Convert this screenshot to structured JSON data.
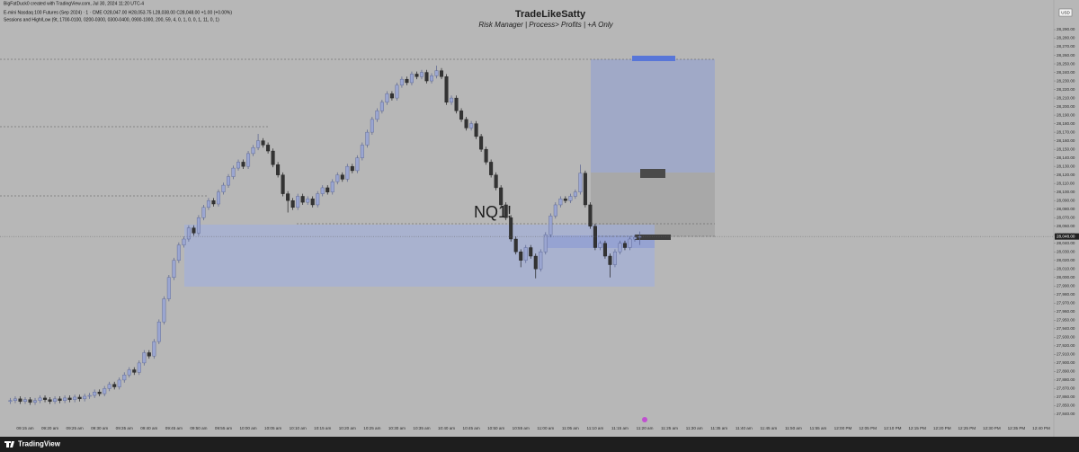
{
  "chart_data": {
    "type": "candlestick",
    "credit": "BigFatDuck0 created with TradingView.com, Jul 30, 2024 11:20 UTC-4",
    "symbol_line": "E-mini Nasdaq 100 Futures (Sep 2024) · 1 · CME  O28,047.00  H28,053.75  L28,038.00  C28,048.00  +1.00 (+0.00%)",
    "indicator_line": "Sessions and High/Low (9t, 1700-0100, 0200-0300, 0300-0400, 0900-1000, 200, 59, 4, 0, 1, 0, 0, 1, 11, 0, 1)",
    "title": "TradeLikeSatty",
    "subtitle": "Risk Manager | Process> Profits | +A Only",
    "currency": "USD",
    "branding": "TradingView",
    "last_price_label": "28,048.00",
    "up_color": "#9ba6d1",
    "down_color": "#333333",
    "grid": false,
    "x": [
      "09:12 am",
      "09:13 am",
      "09:14 am",
      "09:15 am",
      "09:16 am",
      "09:17 am",
      "09:18 am",
      "09:19 am",
      "09:20 am",
      "09:21 am",
      "09:22 am",
      "09:23 am",
      "09:24 am",
      "09:25 am",
      "09:26 am",
      "09:27 am",
      "09:28 am",
      "09:29 am",
      "09:30 am",
      "09:31 am",
      "09:32 am",
      "09:33 am",
      "09:34 am",
      "09:35 am",
      "09:36 am",
      "09:37 am",
      "09:38 am",
      "09:39 am",
      "09:40 am",
      "09:41 am",
      "09:42 am",
      "09:43 am",
      "09:44 am",
      "09:45 am",
      "09:46 am",
      "09:47 am",
      "09:48 am",
      "09:49 am",
      "09:50 am",
      "09:51 am",
      "09:52 am",
      "09:53 am",
      "09:54 am",
      "09:55 am",
      "09:56 am",
      "09:57 am",
      "09:58 am",
      "09:59 am",
      "10:00 am",
      "10:01 am",
      "10:02 am",
      "10:03 am",
      "10:04 am",
      "10:05 am",
      "10:06 am",
      "10:07 am",
      "10:08 am",
      "10:09 am",
      "10:10 am",
      "10:11 am",
      "10:12 am",
      "10:13 am",
      "10:14 am",
      "10:15 am",
      "10:16 am",
      "10:17 am",
      "10:18 am",
      "10:19 am",
      "10:20 am",
      "10:21 am",
      "10:22 am",
      "10:23 am",
      "10:24 am",
      "10:25 am",
      "10:26 am",
      "10:27 am",
      "10:28 am",
      "10:29 am",
      "10:30 am",
      "10:31 am",
      "10:32 am",
      "10:33 am",
      "10:34 am",
      "10:35 am",
      "10:36 am",
      "10:37 am",
      "10:38 am",
      "10:39 am",
      "10:40 am",
      "10:41 am",
      "10:42 am",
      "10:43 am",
      "10:44 am",
      "10:45 am",
      "10:46 am",
      "10:47 am",
      "10:48 am",
      "10:49 am",
      "10:50 am",
      "10:51 am",
      "10:52 am",
      "10:53 am",
      "10:54 am",
      "10:55 am",
      "10:56 am",
      "10:57 am",
      "10:58 am",
      "10:59 am",
      "11:00 am",
      "11:01 am",
      "11:02 am",
      "11:03 am",
      "11:04 am",
      "11:05 am",
      "11:06 am",
      "11:07 am",
      "11:08 am",
      "11:09 am",
      "11:10 am",
      "11:11 am",
      "11:12 am",
      "11:13 am",
      "11:14 am",
      "11:15 am",
      "11:16 am",
      "11:17 am",
      "11:18 am",
      "11:19 am"
    ],
    "open": [
      27855,
      27856,
      27858,
      27855,
      27857,
      27854,
      27856,
      27859,
      27857,
      27855,
      27858,
      27856,
      27859,
      27857,
      27860,
      27858,
      27861,
      27862,
      27866,
      27864,
      27870,
      27875,
      27872,
      27880,
      27886,
      27892,
      27889,
      27900,
      27912,
      27908,
      27925,
      27948,
      27975,
      28000,
      28020,
      28038,
      28045,
      28058,
      28052,
      28070,
      28082,
      28090,
      28086,
      28100,
      28108,
      28118,
      28128,
      28135,
      28130,
      28145,
      28152,
      28160,
      28155,
      28148,
      28132,
      28120,
      28098,
      28090,
      28082,
      28095,
      28088,
      28092,
      28085,
      28098,
      28105,
      28100,
      28112,
      28120,
      28115,
      28130,
      28125,
      28140,
      28155,
      28170,
      28185,
      28195,
      28205,
      28215,
      28210,
      28225,
      28232,
      28228,
      28238,
      28235,
      28240,
      28230,
      28236,
      28242,
      28235,
      28205,
      28210,
      28195,
      28185,
      28175,
      28180,
      28165,
      28150,
      28135,
      28120,
      28105,
      28085,
      28070,
      28045,
      28030,
      28020,
      28035,
      28025,
      28010,
      28030,
      28050,
      28072,
      28085,
      28092,
      28090,
      28095,
      28100,
      28122,
      28085,
      28060,
      28035,
      28040,
      28025,
      28015,
      28030,
      28040,
      28035,
      28045,
      28047
    ],
    "high": [
      27859,
      27861,
      27861,
      27860,
      27860,
      27859,
      27862,
      27862,
      27860,
      27861,
      27861,
      27862,
      27862,
      27863,
      27863,
      27864,
      27865,
      27869,
      27869,
      27873,
      27878,
      27878,
      27883,
      27889,
      27895,
      27895,
      27903,
      27915,
      27915,
      27928,
      27951,
      27978,
      28003,
      28023,
      28041,
      28048,
      28061,
      28061,
      28073,
      28085,
      28093,
      28093,
      28103,
      28111,
      28121,
      28131,
      28138,
      28138,
      28148,
      28155,
      28168,
      28163,
      28158,
      28151,
      28135,
      28123,
      28101,
      28093,
      28098,
      28098,
      28095,
      28095,
      28101,
      28108,
      28108,
      28115,
      28123,
      28123,
      28133,
      28133,
      28143,
      28158,
      28173,
      28188,
      28198,
      28208,
      28218,
      28218,
      28228,
      28235,
      28235,
      28241,
      28241,
      28243,
      28243,
      28239,
      28248,
      28245,
      28238,
      28213,
      28213,
      28198,
      28188,
      28183,
      28183,
      28168,
      28153,
      28138,
      28123,
      28108,
      28088,
      28073,
      28048,
      28033,
      28038,
      28038,
      28028,
      28033,
      28053,
      28075,
      28088,
      28095,
      28095,
      28098,
      28103,
      28132,
      28125,
      28088,
      28063,
      28043,
      28043,
      28028,
      28033,
      28043,
      28043,
      28048,
      28050,
      28053.75
    ],
    "low": [
      27852,
      27853,
      27852,
      27852,
      27851,
      27851,
      27853,
      27854,
      27852,
      27852,
      27853,
      27853,
      27854,
      27854,
      27855,
      27855,
      27858,
      27859,
      27861,
      27861,
      27867,
      27869,
      27869,
      27877,
      27883,
      27886,
      27886,
      27897,
      27905,
      27905,
      27922,
      27945,
      27972,
      27997,
      28017,
      28035,
      28042,
      28049,
      28049,
      28067,
      28079,
      28083,
      28083,
      28097,
      28105,
      28115,
      28125,
      28127,
      28127,
      28142,
      28149,
      28152,
      28145,
      28129,
      28117,
      28095,
      28076,
      28079,
      28079,
      28085,
      28085,
      28082,
      28082,
      28095,
      28097,
      28097,
      28109,
      28112,
      28112,
      28122,
      28122,
      28137,
      28152,
      28167,
      28182,
      28192,
      28202,
      28207,
      28207,
      28222,
      28225,
      28225,
      28232,
      28232,
      28227,
      28227,
      28233,
      28232,
      28202,
      28202,
      28192,
      28182,
      28172,
      28172,
      28162,
      28147,
      28132,
      28117,
      28102,
      28082,
      28067,
      28042,
      28027,
      28012,
      28017,
      28022,
      27999,
      28007,
      28027,
      28047,
      28069,
      28082,
      28087,
      28087,
      28092,
      28097,
      28082,
      28057,
      28032,
      28032,
      28022,
      28000,
      28012,
      28027,
      28032,
      28032,
      28042,
      28038
    ],
    "close": [
      27856,
      27858,
      27855,
      27857,
      27854,
      27856,
      27859,
      27857,
      27855,
      27858,
      27856,
      27859,
      27857,
      27860,
      27858,
      27861,
      27862,
      27866,
      27864,
      27870,
      27875,
      27872,
      27880,
      27886,
      27892,
      27889,
      27900,
      27912,
      27908,
      27925,
      27948,
      27975,
      28000,
      28020,
      28038,
      28045,
      28058,
      28052,
      28070,
      28082,
      28090,
      28086,
      28100,
      28108,
      28118,
      28128,
      28135,
      28130,
      28145,
      28152,
      28160,
      28155,
      28148,
      28132,
      28120,
      28098,
      28090,
      28082,
      28095,
      28088,
      28092,
      28085,
      28098,
      28105,
      28100,
      28112,
      28120,
      28115,
      28130,
      28125,
      28140,
      28155,
      28170,
      28185,
      28195,
      28205,
      28215,
      28210,
      28225,
      28232,
      28228,
      28238,
      28235,
      28240,
      28230,
      28236,
      28242,
      28235,
      28205,
      28210,
      28195,
      28185,
      28175,
      28180,
      28165,
      28150,
      28135,
      28120,
      28105,
      28085,
      28070,
      28045,
      28030,
      28020,
      28035,
      28025,
      28010,
      28030,
      28050,
      28072,
      28085,
      28092,
      28090,
      28095,
      28100,
      28122,
      28085,
      28060,
      28035,
      28040,
      28025,
      28015,
      28030,
      28040,
      28035,
      28045,
      28047,
      28048
    ],
    "xticks": [
      "09:15 am",
      "09:20 am",
      "09:25 am",
      "09:30 am",
      "09:35 am",
      "09:40 am",
      "09:45 am",
      "09:50 am",
      "09:55 am",
      "10:00 am",
      "10:05 am",
      "10:10 am",
      "10:15 am",
      "10:20 am",
      "10:25 am",
      "10:30 am",
      "10:35 am",
      "10:40 am",
      "10:45 am",
      "10:50 am",
      "10:55 am",
      "11:00 am",
      "11:05 am",
      "11:10 am",
      "11:15 am",
      "11:20 am",
      "11:25 am",
      "11:30 am",
      "11:35 am",
      "11:40 am",
      "11:45 am",
      "11:50 am",
      "11:55 am",
      "12:00 PM",
      "12:05 PM",
      "12:10 PM",
      "12:15 PM",
      "12:20 PM",
      "12:25 PM",
      "12:30 PM",
      "12:35 PM",
      "12:40 PM"
    ],
    "ylim": [
      27830.5,
      28324.7
    ],
    "yticks": [
      {
        "value": 28290,
        "label": "28,290.00"
      },
      {
        "value": 28280,
        "label": "28,280.00"
      },
      {
        "value": 28270,
        "label": "28,270.00"
      },
      {
        "value": 28260,
        "label": "28,260.00"
      },
      {
        "value": 28250,
        "label": "28,250.00"
      },
      {
        "value": 28240,
        "label": "28,240.00"
      },
      {
        "value": 28230,
        "label": "28,230.00"
      },
      {
        "value": 28220,
        "label": "28,220.00"
      },
      {
        "value": 28210,
        "label": "28,210.00"
      },
      {
        "value": 28200,
        "label": "28,200.00"
      },
      {
        "value": 28190,
        "label": "28,190.00"
      },
      {
        "value": 28180,
        "label": "28,180.00"
      },
      {
        "value": 28170,
        "label": "28,170.00"
      },
      {
        "value": 28160,
        "label": "28,160.00"
      },
      {
        "value": 28150,
        "label": "28,150.00"
      },
      {
        "value": 28140,
        "label": "28,140.00"
      },
      {
        "value": 28130,
        "label": "28,130.00"
      },
      {
        "value": 28120,
        "label": "28,120.00"
      },
      {
        "value": 28110,
        "label": "28,110.00"
      },
      {
        "value": 28100,
        "label": "28,100.00"
      },
      {
        "value": 28090,
        "label": "28,090.00"
      },
      {
        "value": 28080,
        "label": "28,080.00"
      },
      {
        "value": 28070,
        "label": "28,070.00"
      },
      {
        "value": 28060,
        "label": "28,060.00"
      },
      {
        "value": 28050,
        "label": "28,050.00"
      },
      {
        "value": 28040,
        "label": "28,040.00"
      },
      {
        "value": 28030,
        "label": "28,030.00"
      },
      {
        "value": 28020,
        "label": "28,020.00"
      },
      {
        "value": 28010,
        "label": "28,010.00"
      },
      {
        "value": 28000,
        "label": "28,000.00"
      },
      {
        "value": 27990,
        "label": "27,990.00"
      },
      {
        "value": 27980,
        "label": "27,980.00"
      },
      {
        "value": 27970,
        "label": "27,970.00"
      },
      {
        "value": 27960,
        "label": "27,960.00"
      },
      {
        "value": 27950,
        "label": "27,950.00"
      },
      {
        "value": 27940,
        "label": "27,940.00"
      },
      {
        "value": 27930,
        "label": "27,930.00"
      },
      {
        "value": 27920,
        "label": "27,920.00"
      },
      {
        "value": 27910,
        "label": "27,910.00"
      },
      {
        "value": 27900,
        "label": "27,900.00"
      },
      {
        "value": 27890,
        "label": "27,890.00"
      },
      {
        "value": 27880,
        "label": "27,880.00"
      },
      {
        "value": 27870,
        "label": "27,870.00"
      },
      {
        "value": 27860,
        "label": "27,860.00"
      },
      {
        "value": 27850,
        "label": "27,850.00"
      },
      {
        "value": 27840,
        "label": "27,840.00"
      }
    ]
  }
}
